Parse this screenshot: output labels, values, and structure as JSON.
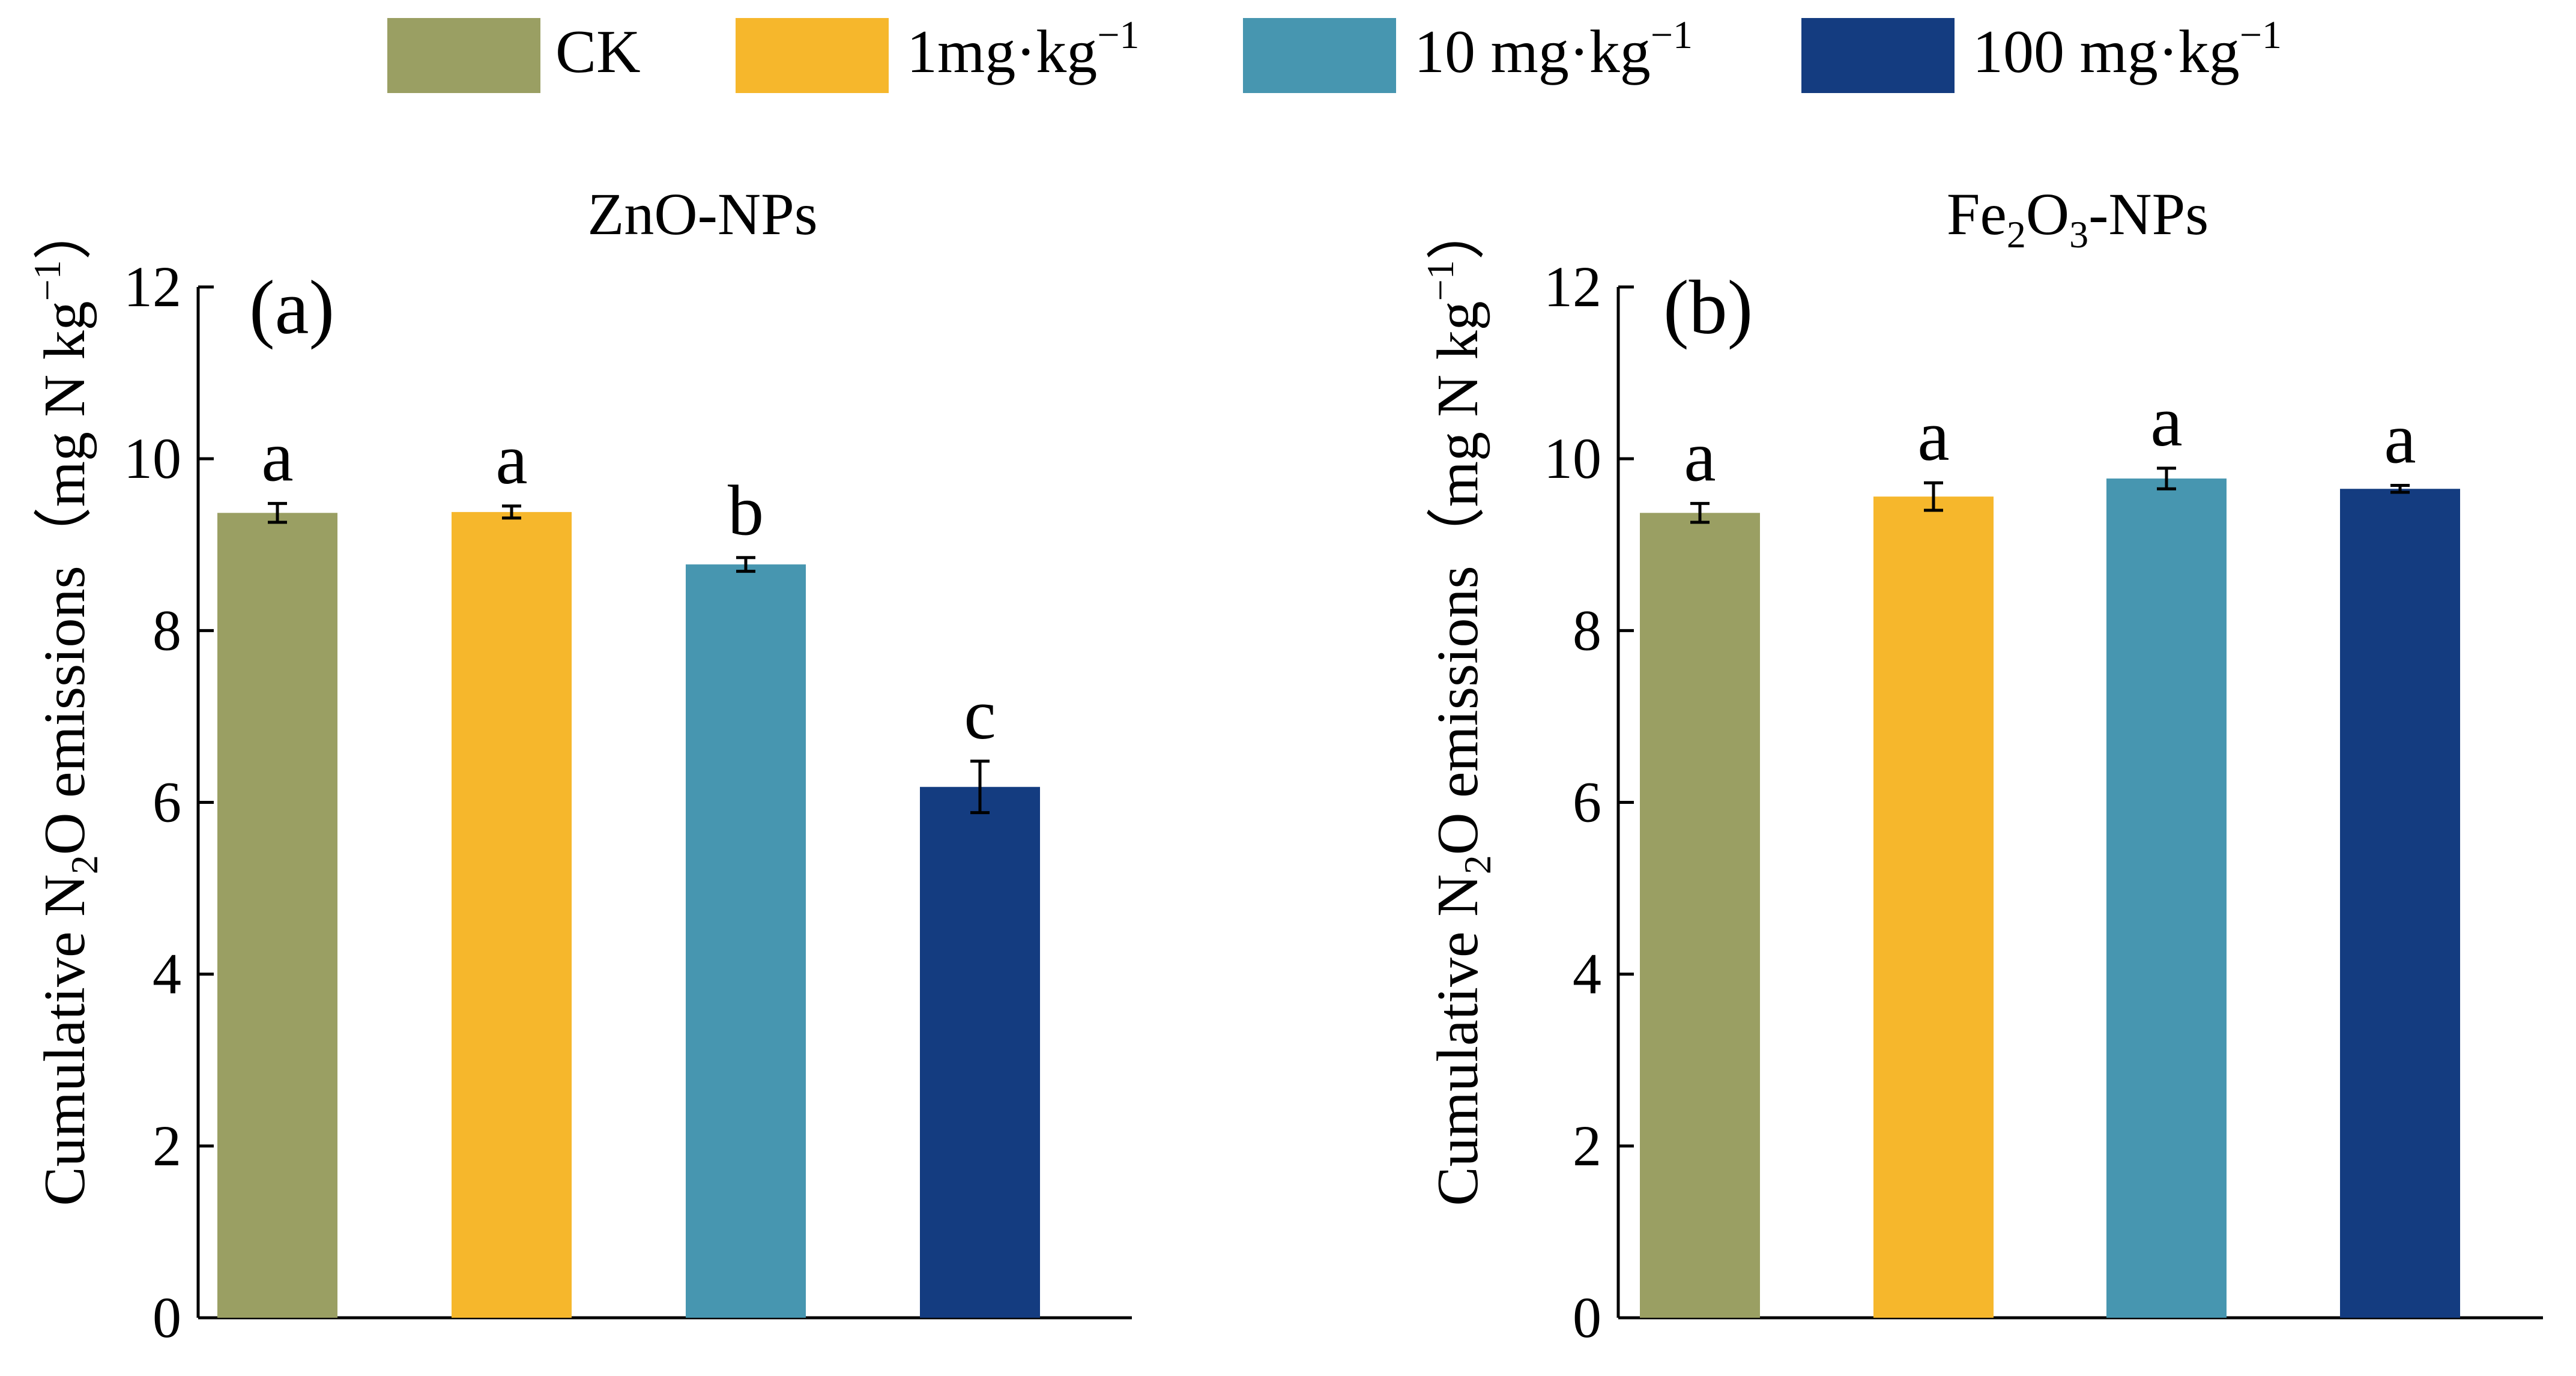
{
  "legend": {
    "items": [
      {
        "label": "CK",
        "sup": "",
        "color": "#9a9f63"
      },
      {
        "label": "1mg·kg",
        "sup": "−1",
        "color": "#f6b72c"
      },
      {
        "label": "10 mg·kg",
        "sup": "−1",
        "color": "#4796b0"
      },
      {
        "label": "100 mg·kg",
        "sup": "−1",
        "color": "#143c80"
      }
    ]
  },
  "chart_data": [
    {
      "type": "bar",
      "panel_label": "(a)",
      "title": {
        "main": "ZnO-NPs"
      },
      "ylabel": {
        "pre": "Cumulative N",
        "sub": "2",
        "mid": "O emissions（mg N kg",
        "sup": "−1",
        "post": "）"
      },
      "xlabel": "",
      "ylim": [
        0,
        12
      ],
      "yticks": [
        0,
        2,
        4,
        6,
        8,
        10,
        12
      ],
      "categories": [
        "CK",
        "1mg·kg−1",
        "10 mg·kg−1",
        "100 mg·kg−1"
      ],
      "values": [
        9.37,
        9.38,
        8.77,
        6.18
      ],
      "errors": [
        0.11,
        0.07,
        0.08,
        0.3
      ],
      "significance": [
        "a",
        "a",
        "b",
        "c"
      ]
    },
    {
      "type": "bar",
      "panel_label": "(b)",
      "title": {
        "pre": "Fe",
        "sub1": "2",
        "mid": "O",
        "sub2": "3",
        "post": "-NPs"
      },
      "ylabel": {
        "pre": "Cumulative N",
        "sub": "2",
        "mid": "O emissions（mg N kg",
        "sup": "−1",
        "post": "）"
      },
      "xlabel": "",
      "ylim": [
        0,
        12
      ],
      "yticks": [
        0,
        2,
        4,
        6,
        8,
        10,
        12
      ],
      "categories": [
        "CK",
        "1mg·kg−1",
        "10 mg·kg−1",
        "100 mg·kg−1"
      ],
      "values": [
        9.37,
        9.56,
        9.77,
        9.65
      ],
      "errors": [
        0.11,
        0.16,
        0.12,
        0.04
      ],
      "significance": [
        "a",
        "a",
        "a",
        "a"
      ]
    }
  ]
}
